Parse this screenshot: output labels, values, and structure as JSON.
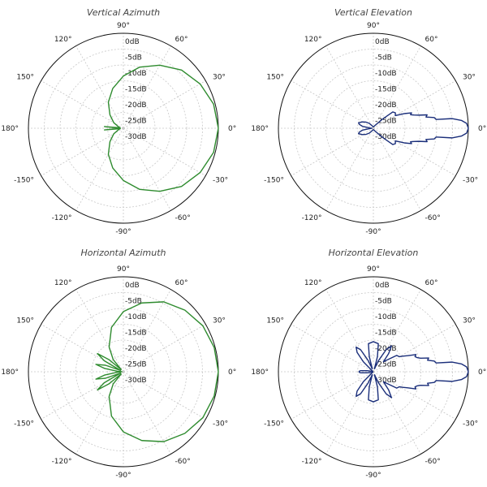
{
  "chart_data": [
    {
      "type": "line",
      "projection": "polar",
      "title": "Vertical Azimuth",
      "color": "#2e8b2e",
      "angle_ticks": [
        "0°",
        "30°",
        "60°",
        "90°",
        "120°",
        "150°",
        "180°",
        "-150°",
        "-120°",
        "-90°",
        "-60°",
        "-30°"
      ],
      "radial_ticks": [
        "0dB",
        "-5dB",
        "-10dB",
        "-15dB",
        "-20dB",
        "-25dB",
        "-30dB"
      ],
      "rlim": [
        -30,
        0
      ],
      "grid": true,
      "series": [
        {
          "angle_deg": [
            0,
            15,
            30,
            45,
            60,
            75,
            90,
            105,
            120,
            135,
            150,
            165,
            172,
            175,
            177,
            180,
            -177,
            -175,
            -172,
            -165,
            -150,
            -135,
            -120,
            -105,
            -90,
            -75,
            -60,
            -45,
            -30,
            -15
          ],
          "db": [
            0,
            -0.5,
            -2,
            -4,
            -7,
            -10,
            -13.5,
            -17,
            -20.5,
            -24,
            -26.5,
            -28.5,
            -29,
            -24,
            -28,
            -29,
            -28,
            -24,
            -29,
            -28.5,
            -26.5,
            -24,
            -20.5,
            -17,
            -13.5,
            -10,
            -7,
            -4,
            -2,
            -0.5
          ]
        }
      ]
    },
    {
      "type": "line",
      "projection": "polar",
      "title": "Vertical Elevation",
      "color": "#1a2e7a",
      "angle_ticks": [
        "0°",
        "30°",
        "60°",
        "90°",
        "120°",
        "150°",
        "180°",
        "-150°",
        "-120°",
        "-90°",
        "-60°",
        "-30°"
      ],
      "radial_ticks": [
        "0dB",
        "-5dB",
        "-10dB",
        "-15dB",
        "-20dB",
        "-25dB",
        "-30dB"
      ],
      "rlim": [
        -30,
        0
      ],
      "grid": true,
      "series": [
        {
          "angle_deg": [
            0,
            3,
            5,
            7,
            8,
            10,
            12,
            14,
            16,
            18,
            20,
            22,
            25,
            30,
            35,
            40,
            45,
            60,
            80,
            100,
            120,
            130,
            140,
            150,
            160,
            165,
            170,
            175,
            180,
            -175,
            -170,
            -165,
            -160,
            -150,
            -140,
            -130,
            -120,
            -100,
            -80,
            -60,
            -45,
            -40,
            -35,
            -30,
            -25,
            -22,
            -20,
            -18,
            -16,
            -14,
            -12,
            -10,
            -8,
            -7,
            -5,
            -3
          ],
          "db": [
            0,
            -0.5,
            -2,
            -5,
            -10,
            -10.5,
            -13,
            -12.5,
            -15,
            -16.5,
            -17.5,
            -17,
            -19,
            -22,
            -21.5,
            -22,
            -26,
            -29,
            -29.5,
            -29.5,
            -29,
            -28,
            -27,
            -26,
            -25,
            -25.5,
            -26.5,
            -29,
            -29.5,
            -29,
            -26.5,
            -25.5,
            -25,
            -26,
            -27,
            -28,
            -29,
            -29.5,
            -29.5,
            -29,
            -26,
            -22,
            -21.5,
            -22,
            -19,
            -17,
            -17.5,
            -16.5,
            -15,
            -12.5,
            -13,
            -10.5,
            -10,
            -5,
            -2,
            -0.5
          ]
        }
      ]
    },
    {
      "type": "line",
      "projection": "polar",
      "title": "Horizontal Azimuth",
      "color": "#2e8b2e",
      "angle_ticks": [
        "0°",
        "30°",
        "60°",
        "90°",
        "120°",
        "150°",
        "180°",
        "-150°",
        "-120°",
        "-90°",
        "-60°",
        "-30°"
      ],
      "radial_ticks": [
        "0dB",
        "-5dB",
        "-10dB",
        "-15dB",
        "-20dB",
        "-25dB",
        "-30dB"
      ],
      "rlim": [
        -30,
        0
      ],
      "grid": true,
      "series": [
        {
          "angle_deg": [
            0,
            15,
            30,
            45,
            60,
            75,
            90,
            105,
            120,
            130,
            135,
            140,
            145,
            150,
            155,
            160,
            165,
            170,
            175,
            180,
            -175,
            -170,
            -165,
            -160,
            -155,
            -150,
            -145,
            -140,
            -135,
            -130,
            -120,
            -105,
            -90,
            -75,
            -60,
            -45,
            -30,
            -15
          ],
          "db": [
            0,
            -0.3,
            -1,
            -2.5,
            -4.5,
            -7.5,
            -11,
            -15.5,
            -21,
            -25,
            -29,
            -24,
            -20,
            -23,
            -29,
            -24,
            -21,
            -24,
            -28,
            -29.5,
            -28,
            -24,
            -21,
            -24,
            -29,
            -23,
            -20,
            -24,
            -29,
            -25,
            -21,
            -15.5,
            -11,
            -7.5,
            -4.5,
            -2.5,
            -1,
            -0.3
          ]
        }
      ]
    },
    {
      "type": "line",
      "projection": "polar",
      "title": "Horizontal Elevation",
      "color": "#1a2e7a",
      "angle_ticks": [
        "0°",
        "30°",
        "60°",
        "90°",
        "120°",
        "150°",
        "180°",
        "-150°",
        "-120°",
        "-90°",
        "-60°",
        "-30°"
      ],
      "radial_ticks": [
        "0dB",
        "-5dB",
        "-10dB",
        "-15dB",
        "-20dB",
        "-25dB",
        "-30dB"
      ],
      "rlim": [
        -30,
        0
      ],
      "grid": true,
      "series": [
        {
          "angle_deg": [
            0,
            3,
            5,
            7,
            8,
            10,
            12,
            14,
            16,
            18,
            20,
            22,
            25,
            28,
            30,
            35,
            40,
            45,
            50,
            55,
            60,
            65,
            70,
            75,
            80,
            90,
            100,
            105,
            110,
            115,
            120,
            125,
            130,
            135,
            140,
            150,
            160,
            170,
            175,
            178,
            180,
            -178,
            -175,
            -170,
            -160,
            -150,
            -140,
            -135,
            -130,
            -125,
            -120,
            -115,
            -110,
            -105,
            -100,
            -90,
            -80,
            -75,
            -70,
            -65,
            -60,
            -55,
            -50,
            -45,
            -40,
            -35,
            -30,
            -28,
            -25,
            -22,
            -20,
            -18,
            -16,
            -14,
            -12,
            -10,
            -8,
            -7,
            -5,
            -3
          ],
          "db": [
            0,
            -0.5,
            -2,
            -5,
            -10,
            -10.5,
            -12.5,
            -12,
            -14.5,
            -15.5,
            -16,
            -15.5,
            -18,
            -19.5,
            -20.5,
            -21,
            -24,
            -25.5,
            -22.5,
            -20,
            -22,
            -26,
            -29,
            -25,
            -21,
            -20.5,
            -21,
            -25,
            -29,
            -26,
            -22,
            -20.5,
            -22,
            -25.5,
            -29.5,
            -29.8,
            -29.6,
            -28,
            -26,
            -25.5,
            -25.5,
            -25.5,
            -26,
            -28,
            -29.6,
            -29.8,
            -29.5,
            -25.5,
            -22,
            -20.5,
            -22,
            -26,
            -29,
            -25,
            -21,
            -20.5,
            -21,
            -25,
            -29,
            -26,
            -22,
            -20,
            -22.5,
            -25.5,
            -24,
            -21,
            -20.5,
            -19.5,
            -18,
            -15.5,
            -16,
            -15.5,
            -14.5,
            -12,
            -12.5,
            -10.5,
            -10,
            -5,
            -2,
            -0.5
          ]
        }
      ]
    }
  ]
}
